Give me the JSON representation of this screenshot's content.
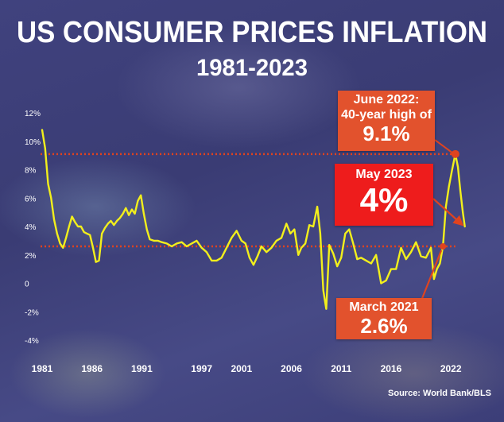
{
  "title": "US CONSUMER PRICES INFLATION",
  "subtitle": "1981-2023",
  "source": "Source: World Bank/BLS",
  "colors": {
    "line": "#f2ef1c",
    "reference": "#e0431f",
    "callout": "#e2522d",
    "callout_bright": "#ee1c1c",
    "text": "#ffffff"
  },
  "chart_data": {
    "type": "line",
    "title": "US CONSUMER PRICES INFLATION",
    "subtitle": "1981-2023",
    "xlabel": "",
    "ylabel": "",
    "xlim": [
      1981,
      2023.5
    ],
    "ylim": [
      -4,
      12
    ],
    "ytick_values": [
      -4,
      -2,
      0,
      2,
      4,
      6,
      8,
      10,
      12
    ],
    "ytick_labels": [
      "-4%",
      "-2%",
      "0",
      "2%",
      "4%",
      "6%",
      "8%",
      "10%",
      "12%"
    ],
    "xtick_values": [
      1981,
      1986,
      1991,
      1997,
      2001,
      2006,
      2011,
      2016,
      2022
    ],
    "xtick_labels": [
      "1981",
      "1986",
      "1991",
      "1997",
      "2001",
      "2006",
      "2011",
      "2016",
      "2022"
    ],
    "reference_lines": [
      9.1,
      2.6
    ],
    "grid": false,
    "series": [
      {
        "x": [
          1981.0,
          1981.3,
          1981.6,
          1981.9,
          1982.2,
          1982.5,
          1982.8,
          1983.1,
          1983.4,
          1983.7,
          1984.0,
          1984.3,
          1984.6,
          1984.9,
          1985.2,
          1985.5,
          1985.8,
          1986.1,
          1986.4,
          1986.7,
          1987.0,
          1987.3,
          1987.6,
          1987.9,
          1988.2,
          1988.5,
          1988.8,
          1989.1,
          1989.4,
          1989.7,
          1990.0,
          1990.3,
          1990.6,
          1990.9,
          1991.2,
          1991.5,
          1991.8,
          1992.2,
          1992.6,
          1993.0,
          1993.5,
          1994.0,
          1994.5,
          1995.0,
          1995.5,
          1996.0,
          1996.5,
          1997.0,
          1997.5,
          1998.0,
          1998.5,
          1999.0,
          1999.5,
          2000.0,
          2000.5,
          2001.0,
          2001.4,
          2001.8,
          2002.2,
          2002.6,
          2003.0,
          2003.5,
          2004.0,
          2004.5,
          2005.0,
          2005.5,
          2005.9,
          2006.3,
          2006.7,
          2007.0,
          2007.4,
          2007.8,
          2008.2,
          2008.6,
          2008.9,
          2009.2,
          2009.5,
          2009.8,
          2010.2,
          2010.6,
          2011.0,
          2011.4,
          2011.8,
          2012.2,
          2012.6,
          2013.0,
          2013.5,
          2014.0,
          2014.5,
          2015.0,
          2015.5,
          2016.0,
          2016.5,
          2017.0,
          2017.5,
          2018.0,
          2018.5,
          2019.0,
          2019.5,
          2020.0,
          2020.3,
          2020.6,
          2020.9,
          2021.2,
          2021.5,
          2021.8,
          2022.1,
          2022.45,
          2022.7,
          2022.95,
          2023.2,
          2023.4
        ],
        "values": [
          10.8,
          9.5,
          7.0,
          6.0,
          4.5,
          3.5,
          2.8,
          2.5,
          3.2,
          4.0,
          4.7,
          4.3,
          4.0,
          4.0,
          3.6,
          3.5,
          3.4,
          2.5,
          1.5,
          1.6,
          3.5,
          3.9,
          4.2,
          4.4,
          4.1,
          4.4,
          4.6,
          4.9,
          5.3,
          4.8,
          5.2,
          4.9,
          5.8,
          6.2,
          4.9,
          3.8,
          3.1,
          3.0,
          3.0,
          2.9,
          2.8,
          2.6,
          2.8,
          2.9,
          2.6,
          2.8,
          3.0,
          2.5,
          2.2,
          1.6,
          1.6,
          1.8,
          2.5,
          3.2,
          3.7,
          3.0,
          2.8,
          1.8,
          1.3,
          1.9,
          2.6,
          2.2,
          2.5,
          3.0,
          3.2,
          4.2,
          3.5,
          3.8,
          2.0,
          2.5,
          2.8,
          4.1,
          4.0,
          5.4,
          3.5,
          -0.5,
          -1.8,
          2.7,
          2.1,
          1.2,
          1.8,
          3.5,
          3.8,
          2.8,
          1.7,
          1.8,
          1.6,
          1.4,
          2.0,
          0.0,
          0.2,
          1.0,
          1.0,
          2.5,
          1.7,
          2.2,
          2.9,
          1.9,
          1.8,
          2.5,
          0.3,
          1.0,
          1.4,
          2.6,
          5.4,
          6.8,
          7.9,
          9.1,
          8.2,
          6.5,
          5.0,
          4.0
        ]
      }
    ],
    "annotations": [
      {
        "line1": "June 2022:",
        "line2": "40-year high of",
        "value": "9.1%",
        "x": 2022.45,
        "y": 9.1
      },
      {
        "line1": "May 2023",
        "value": "4%",
        "x": 2023.4,
        "y": 4.0
      },
      {
        "line1": "March 2021",
        "value": "2.6%",
        "x": 2021.2,
        "y": 2.6
      }
    ]
  }
}
